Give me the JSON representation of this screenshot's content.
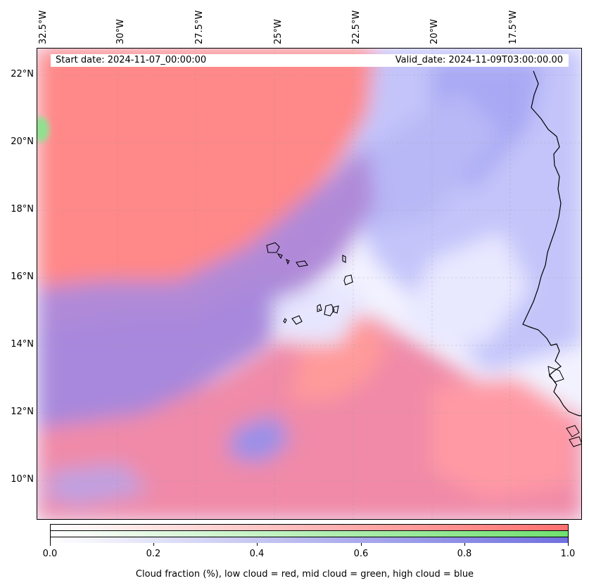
{
  "header": {
    "start_date": "Start date: 2024-11-07_00:00:00",
    "valid_date": "Valid_date: 2024-11-09T03:00:00.00"
  },
  "map": {
    "longitude_labels": [
      "32.5°W",
      "30°W",
      "27.5°W",
      "25°W",
      "22.5°W",
      "20°W",
      "17.5°W"
    ],
    "latitude_labels": [
      "22°N",
      "20°N",
      "18°N",
      "16°N",
      "14°N",
      "12°N",
      "10°N"
    ],
    "colors": {
      "low_cloud": "#ff8080",
      "mid_cloud": "#80ee80",
      "high_cloud": "#8080ee",
      "mixed": "#a080d0"
    }
  },
  "colorbar": {
    "ticks": [
      "0.0",
      "0.2",
      "0.4",
      "0.6",
      "0.8",
      "1.0"
    ],
    "range": [
      0.0,
      1.0
    ],
    "caption": "Cloud fraction (%), low cloud = red, mid cloud = green, high cloud = blue"
  }
}
